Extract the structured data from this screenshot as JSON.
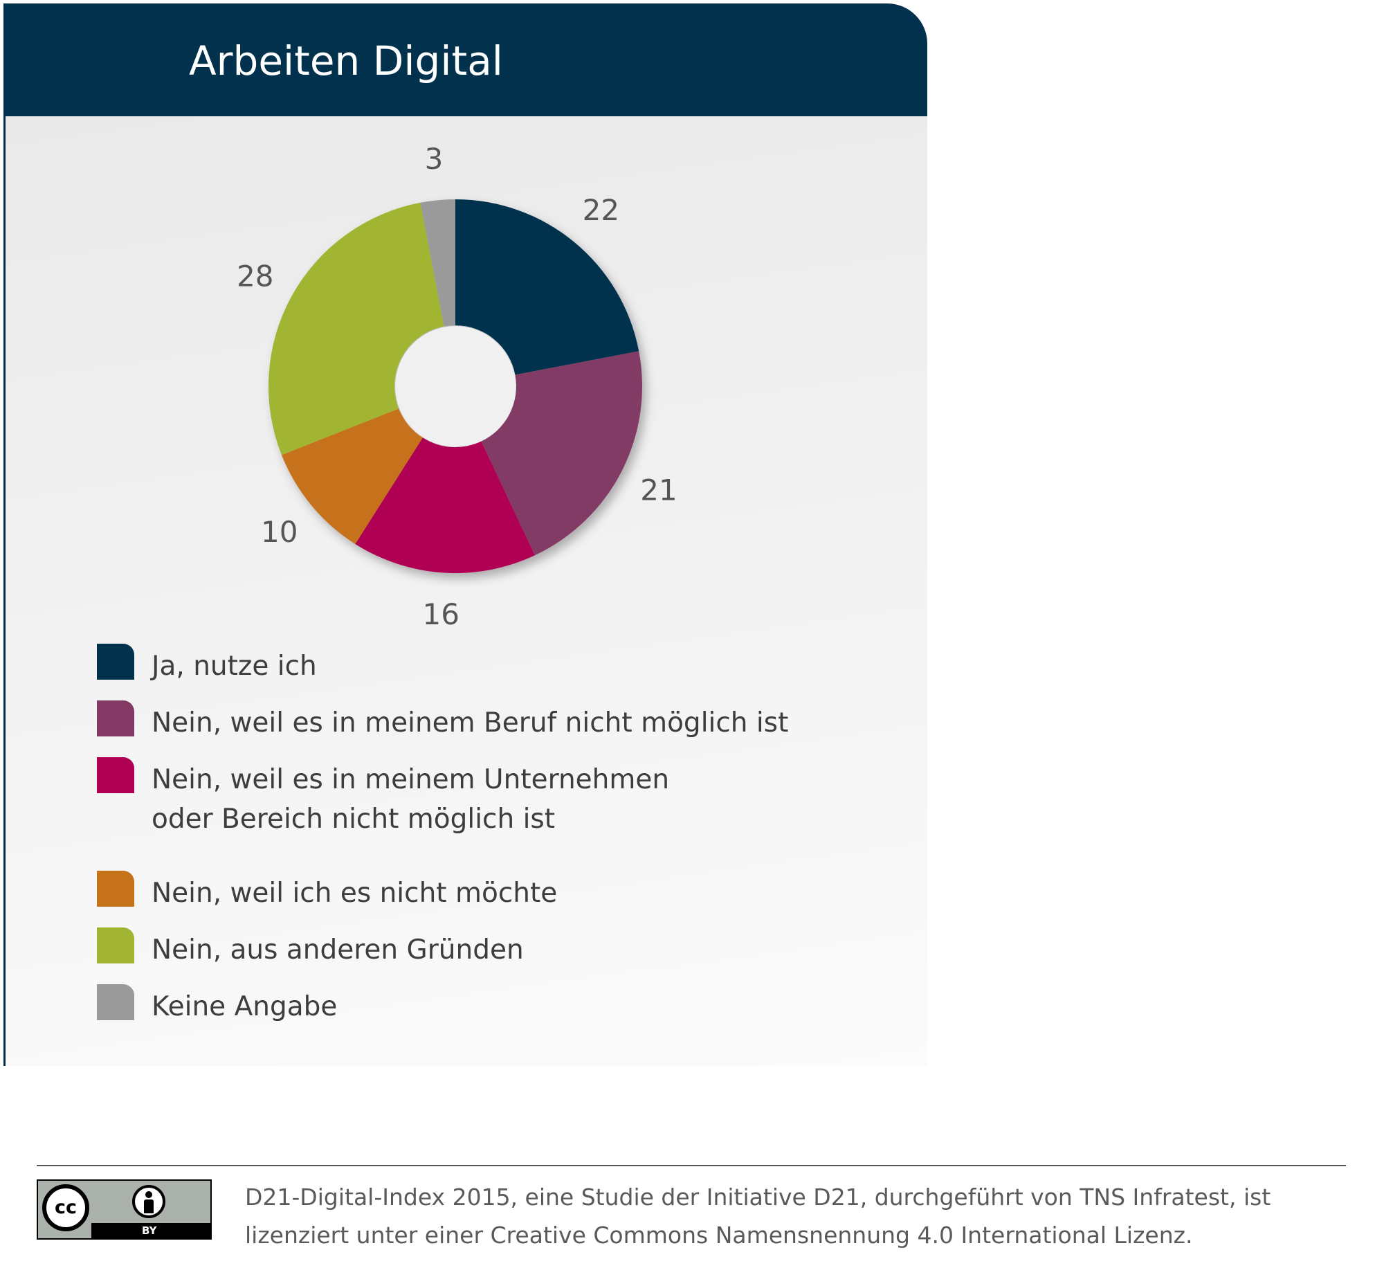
{
  "header": {
    "title": "Arbeiten Digital"
  },
  "chart_data": {
    "type": "pie",
    "title": "Arbeiten Digital",
    "categories": [
      "Ja, nutze ich",
      "Nein, weil es in meinem Beruf nicht möglich ist",
      "Nein, weil es in meinem Unternehmen oder Bereich nicht möglich ist",
      "Nein, weil ich es nicht möchte",
      "Nein, aus anderen Gründen",
      "Keine Angabe"
    ],
    "values": [
      22,
      21,
      16,
      10,
      28,
      3
    ],
    "value_labels": [
      "22",
      "21",
      "16",
      "10",
      "28",
      "3"
    ],
    "colors": [
      "#02314d",
      "#823a65",
      "#b00052",
      "#c6721b",
      "#a2b533",
      "#9a9a9a"
    ],
    "donut": true,
    "legend_position": "bottom-left"
  },
  "legend": {
    "items": [
      {
        "label": "Ja, nutze ich",
        "color": "#02314d"
      },
      {
        "label": "Nein, weil es in meinem Beruf nicht möglich ist",
        "color": "#823a65"
      },
      {
        "label": "Nein, weil es in meinem Unternehmen oder Bereich nicht möglich ist",
        "color": "#b00052"
      },
      {
        "label": "Nein, weil ich es nicht möchte",
        "color": "#c6721b"
      },
      {
        "label": "Nein, aus anderen Gründen",
        "color": "#a2b533"
      },
      {
        "label": "Keine Angabe",
        "color": "#9a9a9a"
      }
    ]
  },
  "footer": {
    "license_text": "D21-Digital-Index 2015, eine Studie der Initiative D21, durchgeführt von TNS Infratest, ist lizenziert unter einer Creative Commons Namensnennung 4.0 International Lizenz.",
    "badge": {
      "cc": "cc",
      "by": "BY",
      "icon": "creative-commons-by-icon"
    }
  }
}
